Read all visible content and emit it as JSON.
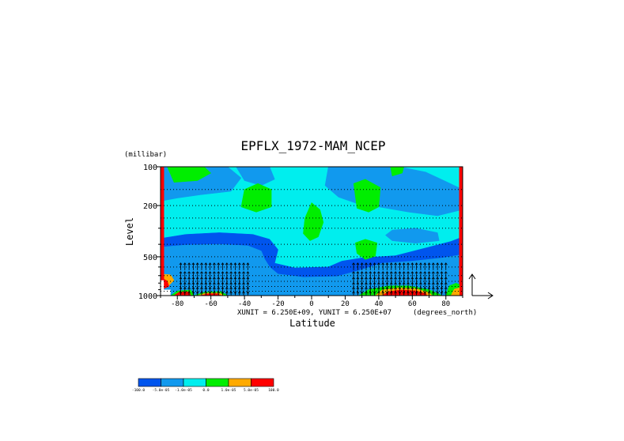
{
  "chart_data": {
    "type": "heatmap",
    "title": "EPFLX_1972-MAM_NCEP",
    "xlabel": "Latitude",
    "ylabel": "Level",
    "y_units": "(millibar)",
    "x_units": "(degrees_north)",
    "unit_note": "XUNIT = 6.250E+09, YUNIT = 6.250E+07",
    "x_ticks": [
      "-80",
      "-60",
      "-40",
      "-20",
      "0",
      "20",
      "40",
      "60",
      "80"
    ],
    "x_tick_values": [
      -80,
      -60,
      -40,
      -20,
      0,
      20,
      40,
      60,
      80
    ],
    "y_ticks": [
      "100",
      "200",
      "500",
      "1000"
    ],
    "y_tick_values": [
      100,
      200,
      500,
      1000
    ],
    "xlim": [
      -90,
      90
    ],
    "ylim": [
      1000,
      100
    ],
    "y_scale": "log",
    "colorbar": {
      "colors": [
        "#0055ee",
        "#1199ee",
        "#00eeee",
        "#00ee00",
        "#ffaa00",
        "#ff0000"
      ],
      "labels": [
        "-100.0",
        "-5.0e-05",
        "-1.0e-05",
        "0.0",
        "1.0e-05",
        "5.0e-05",
        "100.0"
      ]
    },
    "regions": [
      {
        "c": 2,
        "p": [
          [
            -90,
            100
          ],
          [
            90,
            100
          ],
          [
            90,
            1000
          ],
          [
            -90,
            1000
          ]
        ]
      },
      {
        "c": 0,
        "p": [
          [
            -90,
            360
          ],
          [
            -75,
            335
          ],
          [
            -55,
            325
          ],
          [
            -35,
            335
          ],
          [
            -25,
            365
          ],
          [
            -20,
            440
          ],
          [
            -22,
            560
          ],
          [
            -10,
            610
          ],
          [
            10,
            600
          ],
          [
            18,
            540
          ],
          [
            30,
            510
          ],
          [
            50,
            490
          ],
          [
            70,
            420
          ],
          [
            83,
            380
          ],
          [
            90,
            350
          ],
          [
            90,
            1000
          ],
          [
            -90,
            1000
          ]
        ]
      },
      {
        "c": 1,
        "p": [
          [
            -90,
            420
          ],
          [
            -75,
            405
          ],
          [
            -55,
            400
          ],
          [
            -38,
            410
          ],
          [
            -30,
            450
          ],
          [
            -28,
            520
          ],
          [
            -25,
            600
          ],
          [
            -20,
            680
          ],
          [
            -5,
            720
          ],
          [
            15,
            710
          ],
          [
            28,
            640
          ],
          [
            42,
            560
          ],
          [
            60,
            540
          ],
          [
            78,
            510
          ],
          [
            90,
            480
          ],
          [
            90,
            1000
          ],
          [
            -90,
            1000
          ]
        ]
      },
      {
        "c": 1,
        "p": [
          [
            -90,
            100
          ],
          [
            -50,
            100
          ],
          [
            -42,
            122
          ],
          [
            -48,
            155
          ],
          [
            -66,
            165
          ],
          [
            -80,
            175
          ],
          [
            -90,
            185
          ]
        ]
      },
      {
        "c": 1,
        "p": [
          [
            -45,
            100
          ],
          [
            -25,
            100
          ],
          [
            -22,
            125
          ],
          [
            -30,
            140
          ],
          [
            -40,
            128
          ]
        ]
      },
      {
        "c": 1,
        "p": [
          [
            10,
            100
          ],
          [
            35,
            100
          ],
          [
            52,
            100
          ],
          [
            68,
            110
          ],
          [
            80,
            130
          ],
          [
            90,
            150
          ],
          [
            90,
            215
          ],
          [
            75,
            240
          ],
          [
            58,
            225
          ],
          [
            40,
            205
          ],
          [
            28,
            195
          ],
          [
            16,
            172
          ],
          [
            8,
            140
          ]
        ]
      },
      {
        "c": 1,
        "p": [
          [
            48,
            310
          ],
          [
            62,
            300
          ],
          [
            75,
            325
          ],
          [
            76,
            375
          ],
          [
            62,
            392
          ],
          [
            48,
            375
          ],
          [
            44,
            340
          ]
        ]
      },
      {
        "c": 3,
        "p": [
          [
            -86,
            100
          ],
          [
            -64,
            100
          ],
          [
            -60,
            112
          ],
          [
            -68,
            128
          ],
          [
            -82,
            132
          ]
        ]
      },
      {
        "c": 3,
        "p": [
          [
            -40,
            150
          ],
          [
            -32,
            135
          ],
          [
            -24,
            150
          ],
          [
            -24,
            205
          ],
          [
            -33,
            225
          ],
          [
            -42,
            205
          ]
        ]
      },
      {
        "c": 3,
        "p": [
          [
            0,
            190
          ],
          [
            5,
            215
          ],
          [
            7,
            270
          ],
          [
            4,
            350
          ],
          [
            -1,
            375
          ],
          [
            -5,
            330
          ],
          [
            -4,
            250
          ]
        ]
      },
      {
        "c": 3,
        "p": [
          [
            25,
            135
          ],
          [
            32,
            125
          ],
          [
            41,
            145
          ],
          [
            40,
            205
          ],
          [
            34,
            225
          ],
          [
            27,
            210
          ]
        ]
      },
      {
        "c": 3,
        "p": [
          [
            26,
            390
          ],
          [
            32,
            365
          ],
          [
            39,
            390
          ],
          [
            38,
            495
          ],
          [
            32,
            525
          ],
          [
            27,
            470
          ]
        ]
      },
      {
        "c": 3,
        "p": [
          [
            47,
            100
          ],
          [
            55,
            100
          ],
          [
            54,
            112
          ],
          [
            48,
            118
          ]
        ]
      },
      {
        "c": 4,
        "p": [
          [
            -90,
            680
          ],
          [
            -84,
            690
          ],
          [
            -82,
            760
          ],
          [
            -86,
            860
          ],
          [
            -90,
            880
          ]
        ]
      },
      {
        "c": 5,
        "p": [
          [
            -90,
            100
          ],
          [
            -88,
            100
          ],
          [
            -88,
            1000
          ],
          [
            -90,
            1000
          ]
        ]
      },
      {
        "c": 5,
        "p": [
          [
            88,
            100
          ],
          [
            90,
            100
          ],
          [
            90,
            1000
          ],
          [
            88,
            1000
          ]
        ]
      },
      {
        "c": 5,
        "p": [
          [
            -90,
            720
          ],
          [
            -86,
            770
          ],
          [
            -85,
            850
          ],
          [
            -88,
            880
          ],
          [
            -90,
            880
          ]
        ]
      },
      {
        "c": 3,
        "p": [
          [
            -84,
            1000
          ],
          [
            -80,
            920
          ],
          [
            -72,
            905
          ],
          [
            -70,
            1000
          ]
        ]
      },
      {
        "c": 5,
        "p": [
          [
            -82,
            1000
          ],
          [
            -79,
            940
          ],
          [
            -73,
            935
          ],
          [
            -72,
            1000
          ]
        ]
      },
      {
        "c": 3,
        "p": [
          [
            -70,
            1000
          ],
          [
            -64,
            940
          ],
          [
            -54,
            930
          ],
          [
            -50,
            1000
          ]
        ]
      },
      {
        "c": 4,
        "p": [
          [
            -68,
            1000
          ],
          [
            -63,
            955
          ],
          [
            -55,
            950
          ],
          [
            -52,
            1000
          ]
        ]
      },
      {
        "c": 5,
        "p": [
          [
            -66,
            1000
          ],
          [
            -62,
            970
          ],
          [
            -56,
            968
          ],
          [
            -54,
            1000
          ]
        ]
      },
      {
        "c": 3,
        "p": [
          [
            28,
            1000
          ],
          [
            34,
            900
          ],
          [
            46,
            840
          ],
          [
            58,
            840
          ],
          [
            70,
            900
          ],
          [
            78,
            1000
          ]
        ]
      },
      {
        "c": 4,
        "p": [
          [
            38,
            1000
          ],
          [
            42,
            905
          ],
          [
            52,
            870
          ],
          [
            62,
            880
          ],
          [
            70,
            950
          ],
          [
            72,
            1000
          ]
        ]
      },
      {
        "c": 5,
        "p": [
          [
            42,
            1000
          ],
          [
            46,
            930
          ],
          [
            53,
            905
          ],
          [
            62,
            918
          ],
          [
            68,
            965
          ],
          [
            69,
            1000
          ]
        ]
      },
      {
        "c": 3,
        "p": [
          [
            80,
            1000
          ],
          [
            82,
            840
          ],
          [
            86,
            800
          ],
          [
            88,
            820
          ],
          [
            88,
            1000
          ]
        ]
      },
      {
        "c": 4,
        "p": [
          [
            83,
            1000
          ],
          [
            85,
            890
          ],
          [
            88,
            870
          ],
          [
            88,
            1000
          ]
        ]
      }
    ],
    "white_gaps": [
      {
        "p": [
          [
            -90,
            760
          ],
          [
            -88,
            760
          ],
          [
            -88,
            1000
          ],
          [
            -90,
            1000
          ]
        ]
      },
      {
        "p": [
          [
            -89,
            900
          ],
          [
            -84,
            900
          ],
          [
            -84,
            1000
          ],
          [
            -89,
            1000
          ]
        ]
      }
    ],
    "vector_levels": [
      100,
      150,
      200,
      250,
      300,
      400,
      500,
      600,
      700,
      775,
      850,
      925,
      1000
    ],
    "vector_x_step": 2.5,
    "vectors": [
      {
        "lat0": -78,
        "lat1": -38,
        "p0": 560,
        "p1": 1000,
        "dir": "up"
      },
      {
        "lat0": 25,
        "lat1": 82,
        "p0": 560,
        "p1": 1000,
        "dir": "up"
      }
    ],
    "reference_vector": {
      "dx": 1,
      "dy": 1
    }
  }
}
